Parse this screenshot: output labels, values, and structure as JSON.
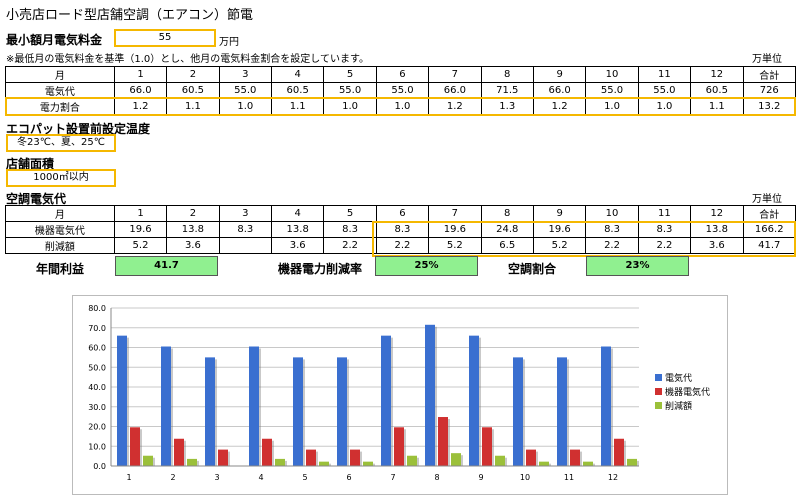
{
  "title": "小売店ロード型店舗空調（エアコン）節電",
  "min_fee": {
    "label": "最小額月電気料金",
    "value": "55",
    "unit": "万円"
  },
  "note": "※最低月の電気料金を基準（1.0）とし、他月の電気料金割合を設定しています。",
  "unit_label": "万単位",
  "table1": {
    "header": [
      "月",
      "1",
      "2",
      "3",
      "4",
      "5",
      "6",
      "7",
      "8",
      "9",
      "10",
      "11",
      "12",
      "合計"
    ],
    "row1": [
      "電気代",
      "66.0",
      "60.5",
      "55.0",
      "60.5",
      "55.0",
      "55.0",
      "66.0",
      "71.5",
      "66.0",
      "55.0",
      "55.0",
      "60.5",
      "726"
    ],
    "row2": [
      "電力割合",
      "1.2",
      "1.1",
      "1.0",
      "1.1",
      "1.0",
      "1.0",
      "1.2",
      "1.3",
      "1.2",
      "1.0",
      "1.0",
      "1.1",
      "13.2"
    ]
  },
  "setting_temp": {
    "label": "エコパット設置前設定温度",
    "value": "冬23℃、夏、25℃"
  },
  "store_area": {
    "label": "店舗面積",
    "value": "1000㎡以内"
  },
  "aircon_cost_label": "空調電気代",
  "unit_label2": "万単位",
  "table2": {
    "header": [
      "月",
      "1",
      "2",
      "3",
      "4",
      "5",
      "6",
      "7",
      "8",
      "9",
      "10",
      "11",
      "12",
      "合計"
    ],
    "row1": [
      "機器電気代",
      "19.6",
      "13.8",
      "8.3",
      "13.8",
      "8.3",
      "8.3",
      "19.6",
      "24.8",
      "19.6",
      "8.3",
      "8.3",
      "13.8",
      "166.2"
    ],
    "row2": [
      "削減額",
      "5.2",
      "3.6",
      "",
      "3.6",
      "2.2",
      "2.2",
      "5.2",
      "6.5",
      "5.2",
      "2.2",
      "2.2",
      "3.6",
      "41.7"
    ]
  },
  "summary": {
    "annual_profit_label": "年間利益",
    "annual_profit_value": "41.7",
    "reduction_rate_label": "機器電力削減率",
    "reduction_rate_value": "25%",
    "aircon_ratio_label": "空調割合",
    "aircon_ratio_value": "23%"
  },
  "colors": {
    "highlight": "#f5b800",
    "green": "#90f090",
    "s1": "#3a6fd0",
    "s2": "#d03030",
    "s3": "#9bc03a"
  },
  "chart_data": {
    "type": "bar",
    "categories": [
      "1",
      "2",
      "3",
      "4",
      "5",
      "6",
      "7",
      "8",
      "9",
      "10",
      "11",
      "12"
    ],
    "series": [
      {
        "name": "電気代",
        "values": [
          66.0,
          60.5,
          55.0,
          60.5,
          55.0,
          55.0,
          66.0,
          71.5,
          66.0,
          55.0,
          55.0,
          60.5
        ]
      },
      {
        "name": "機器電気代",
        "values": [
          19.6,
          13.8,
          8.3,
          13.8,
          8.3,
          8.3,
          19.6,
          24.8,
          19.6,
          8.3,
          8.3,
          13.8
        ]
      },
      {
        "name": "削減額",
        "values": [
          5.2,
          3.6,
          0,
          3.6,
          2.2,
          2.2,
          5.2,
          6.5,
          5.2,
          2.2,
          2.2,
          3.6
        ]
      }
    ],
    "yticks": [
      "0.0",
      "10.0",
      "20.0",
      "30.0",
      "40.0",
      "50.0",
      "60.0",
      "70.0",
      "80.0"
    ],
    "ylim": [
      0,
      80
    ],
    "grid": true,
    "legend": "right"
  }
}
